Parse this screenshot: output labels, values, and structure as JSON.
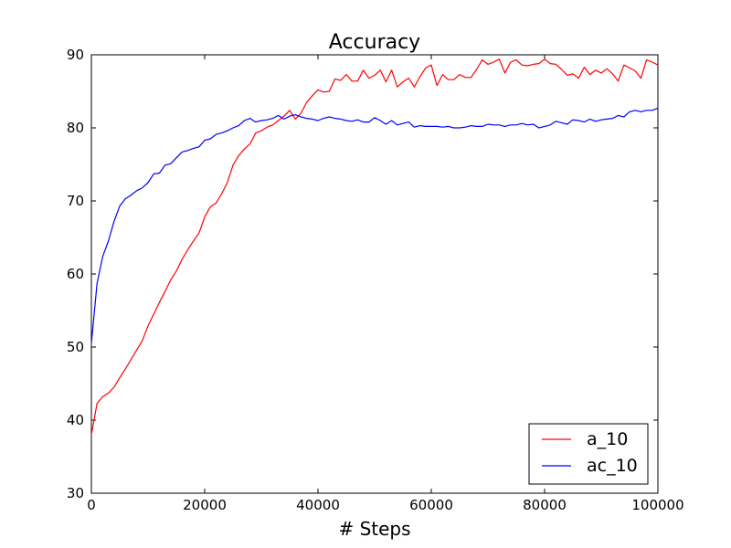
{
  "chart_data": {
    "type": "line",
    "title": "Accuracy",
    "xlabel": "# Steps",
    "ylabel": "",
    "xlim": [
      0,
      100000
    ],
    "ylim": [
      30,
      90
    ],
    "xticks": [
      0,
      20000,
      40000,
      60000,
      80000,
      100000
    ],
    "xtick_labels": [
      "0",
      "20000",
      "40000",
      "60000",
      "80000",
      "100000"
    ],
    "yticks": [
      30,
      40,
      50,
      60,
      70,
      80,
      90
    ],
    "ytick_labels": [
      "30",
      "40",
      "50",
      "60",
      "70",
      "80",
      "90"
    ],
    "grid": false,
    "legend_position": "bottom-right",
    "series": [
      {
        "name": "a_10",
        "color": "#ff0000",
        "x": [
          0,
          1000,
          2000,
          3000,
          4000,
          5000,
          6000,
          7000,
          8000,
          9000,
          10000,
          11000,
          12000,
          13000,
          14000,
          15000,
          16000,
          17000,
          18000,
          19000,
          20000,
          21000,
          22000,
          23000,
          24000,
          25000,
          26000,
          27000,
          28000,
          29000,
          30000,
          31000,
          32000,
          33000,
          34000,
          35000,
          36000,
          37000,
          38000,
          39000,
          40000,
          41000,
          42000,
          43000,
          44000,
          45000,
          46000,
          47000,
          48000,
          49000,
          50000,
          51000,
          52000,
          53000,
          54000,
          55000,
          56000,
          57000,
          58000,
          59000,
          60000,
          61000,
          62000,
          63000,
          64000,
          65000,
          66000,
          67000,
          68000,
          69000,
          70000,
          71000,
          72000,
          73000,
          74000,
          75000,
          76000,
          77000,
          78000,
          79000,
          80000,
          81000,
          82000,
          83000,
          84000,
          85000,
          86000,
          87000,
          88000,
          89000,
          90000,
          91000,
          92000,
          93000,
          94000,
          95000,
          96000,
          97000,
          98000,
          99000,
          100000
        ],
        "y": [
          38.0,
          42.3,
          43.2,
          43.7,
          44.5,
          45.8,
          47.0,
          48.3,
          49.6,
          50.9,
          52.9,
          54.5,
          56.1,
          57.6,
          59.2,
          60.4,
          62.0,
          63.3,
          64.5,
          65.6,
          67.8,
          69.2,
          69.7,
          71.0,
          72.5,
          74.9,
          76.2,
          77.1,
          77.8,
          79.3,
          79.6,
          80.1,
          80.4,
          81.0,
          81.6,
          82.4,
          81.2,
          82.0,
          83.5,
          84.4,
          85.2,
          84.9,
          85.0,
          86.7,
          86.5,
          87.3,
          86.4,
          86.4,
          87.9,
          86.8,
          87.2,
          87.9,
          86.3,
          87.9,
          85.6,
          86.3,
          86.8,
          85.6,
          87.0,
          88.2,
          88.6,
          85.8,
          87.3,
          86.6,
          86.6,
          87.3,
          86.9,
          86.9,
          88.0,
          89.3,
          88.7,
          89.0,
          89.4,
          87.5,
          89.0,
          89.3,
          88.6,
          88.5,
          88.7,
          88.8,
          89.4,
          88.8,
          88.7,
          88.0,
          87.2,
          87.4,
          86.8,
          88.3,
          87.3,
          87.9,
          87.5,
          88.1,
          87.4,
          86.4,
          88.6,
          88.2,
          87.8,
          86.8,
          89.3,
          89.0,
          88.6
        ]
      },
      {
        "name": "ac_10",
        "color": "#0000ff",
        "x": [
          0,
          1000,
          2000,
          3000,
          4000,
          5000,
          6000,
          7000,
          8000,
          9000,
          10000,
          11000,
          12000,
          13000,
          14000,
          15000,
          16000,
          17000,
          18000,
          19000,
          20000,
          21000,
          22000,
          23000,
          24000,
          25000,
          26000,
          27000,
          28000,
          29000,
          30000,
          31000,
          32000,
          33000,
          34000,
          35000,
          36000,
          37000,
          38000,
          39000,
          40000,
          41000,
          42000,
          43000,
          44000,
          45000,
          46000,
          47000,
          48000,
          49000,
          50000,
          51000,
          52000,
          53000,
          54000,
          55000,
          56000,
          57000,
          58000,
          59000,
          60000,
          61000,
          62000,
          63000,
          64000,
          65000,
          66000,
          67000,
          68000,
          69000,
          70000,
          71000,
          72000,
          73000,
          74000,
          75000,
          76000,
          77000,
          78000,
          79000,
          80000,
          81000,
          82000,
          83000,
          84000,
          85000,
          86000,
          87000,
          88000,
          89000,
          90000,
          91000,
          92000,
          93000,
          94000,
          95000,
          96000,
          97000,
          98000,
          99000,
          100000
        ],
        "y": [
          50.5,
          58.7,
          62.4,
          64.5,
          67.2,
          69.3,
          70.3,
          70.8,
          71.4,
          71.8,
          72.5,
          73.7,
          73.8,
          74.9,
          75.1,
          75.9,
          76.7,
          76.9,
          77.2,
          77.4,
          78.3,
          78.5,
          79.1,
          79.3,
          79.6,
          80.0,
          80.3,
          81.0,
          81.3,
          80.8,
          81.0,
          81.1,
          81.3,
          81.7,
          81.2,
          81.6,
          81.8,
          81.5,
          81.3,
          81.2,
          81.0,
          81.3,
          81.5,
          81.3,
          81.2,
          81.0,
          80.9,
          81.1,
          80.8,
          80.8,
          81.4,
          81.0,
          80.5,
          81.0,
          80.4,
          80.6,
          80.8,
          80.1,
          80.3,
          80.2,
          80.2,
          80.2,
          80.1,
          80.2,
          80.0,
          80.0,
          80.1,
          80.3,
          80.2,
          80.2,
          80.5,
          80.4,
          80.4,
          80.2,
          80.4,
          80.4,
          80.6,
          80.4,
          80.5,
          80.0,
          80.2,
          80.4,
          80.9,
          80.7,
          80.5,
          81.1,
          81.0,
          80.8,
          81.2,
          80.9,
          81.1,
          81.2,
          81.3,
          81.7,
          81.5,
          82.2,
          82.4,
          82.2,
          82.4,
          82.4,
          82.7
        ]
      }
    ]
  }
}
